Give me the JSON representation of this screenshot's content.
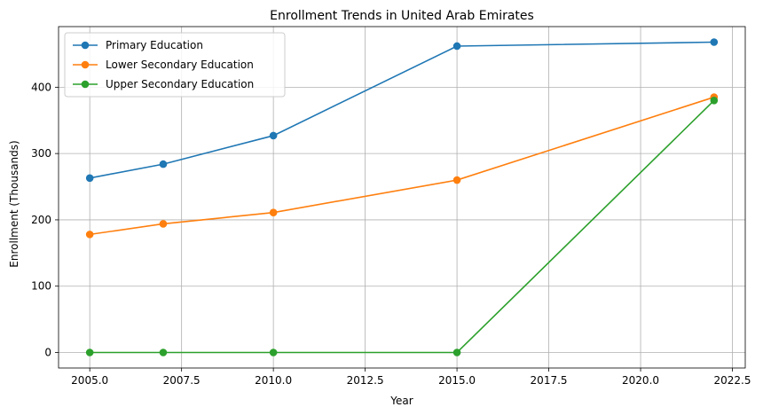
{
  "chart_data": {
    "type": "line",
    "title": "Enrollment Trends in United Arab Emirates",
    "xlabel": "Year",
    "ylabel": "Enrollment (Thousands)",
    "x": [
      2005,
      2007,
      2010,
      2015,
      2022
    ],
    "xlim": [
      2004.15,
      2022.85
    ],
    "ylim": [
      -23.4,
      491.4
    ],
    "x_ticks": [
      "2005.0",
      "2007.5",
      "2010.0",
      "2012.5",
      "2015.0",
      "2017.5",
      "2020.0",
      "2022.5"
    ],
    "x_tick_values": [
      2005,
      2007.5,
      2010,
      2012.5,
      2015,
      2017.5,
      2020,
      2022.5
    ],
    "y_ticks": [
      "0",
      "100",
      "200",
      "300",
      "400"
    ],
    "y_tick_values": [
      0,
      100,
      200,
      300,
      400
    ],
    "grid": true,
    "legend_position": "top-left",
    "series": [
      {
        "name": "Primary Education",
        "color": "#1f77b4",
        "values": [
          263,
          284,
          327,
          462,
          468
        ]
      },
      {
        "name": "Lower Secondary Education",
        "color": "#ff7f0e",
        "values": [
          178,
          194,
          211,
          260,
          385
        ]
      },
      {
        "name": "Upper Secondary Education",
        "color": "#2ca02c",
        "values": [
          0,
          0,
          0,
          0,
          380
        ]
      }
    ]
  }
}
